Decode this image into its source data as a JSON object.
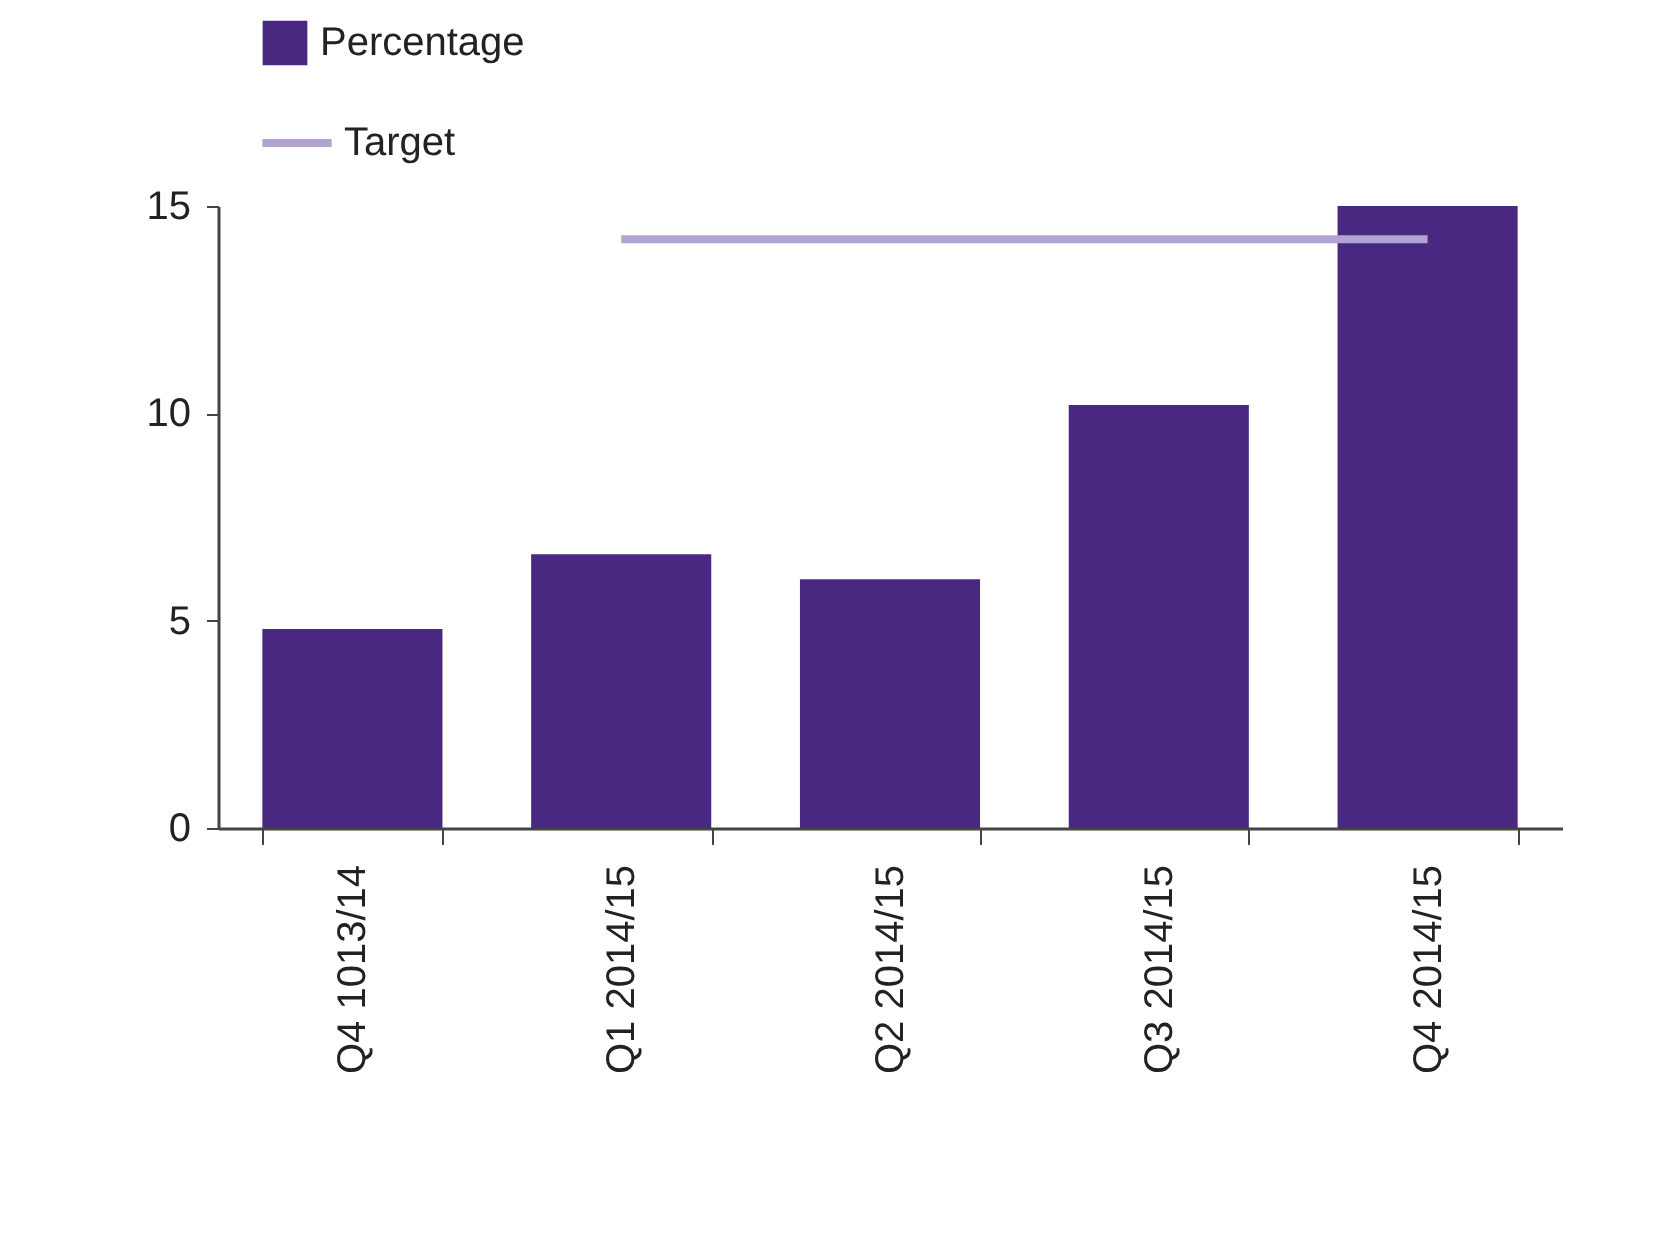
{
  "chart_data": {
    "type": "bar",
    "categories": [
      "Q4 1013/14",
      "Q1 2014/15",
      "Q2 2014/15",
      "Q3 2014/15",
      "Q4 2014/15"
    ],
    "series": [
      {
        "name": "Percentage",
        "color": "#482880",
        "values": [
          4.8,
          6.6,
          6.0,
          10.2,
          15.0
        ]
      },
      {
        "name": "Target",
        "type": "line",
        "color": "#b3a3d3",
        "values": [
          null,
          14.2,
          14.2,
          14.2,
          14.2
        ]
      }
    ],
    "ylim": [
      0,
      15
    ],
    "yticks": [
      0,
      5,
      10,
      15
    ],
    "grid": false,
    "legend": "top left"
  }
}
